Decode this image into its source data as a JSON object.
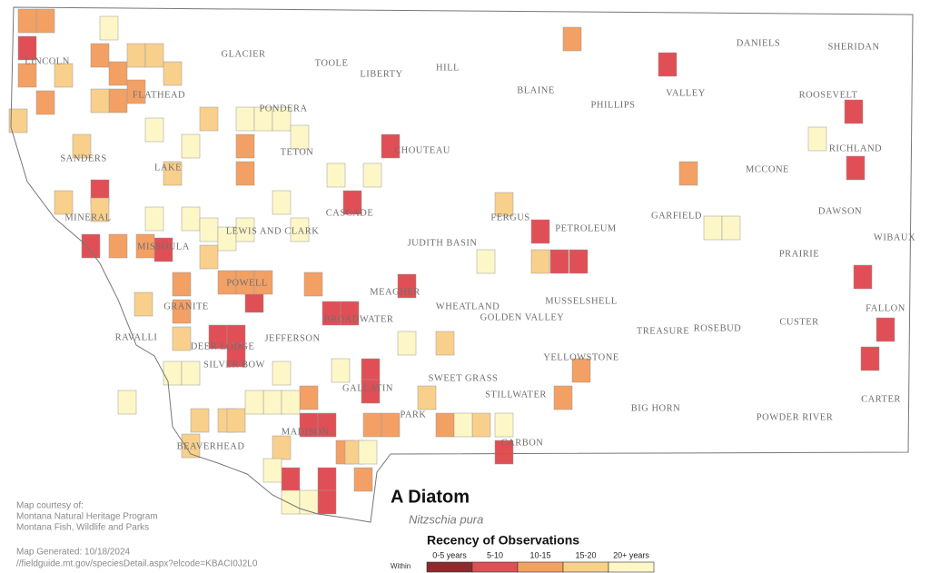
{
  "map": {
    "title": "A Diatom",
    "subtitle": "Nitzschia pura",
    "counties": [
      "LINCOLN",
      "GLACIER",
      "TOOLE",
      "LIBERTY",
      "HILL",
      "BLAINE",
      "PHILLIPS",
      "VALLEY",
      "DANIELS",
      "SHERIDAN",
      "ROOSEVELT",
      "FLATHEAD",
      "PONDERA",
      "TETON",
      "CHOUTEAU",
      "RICHLAND",
      "SANDERS",
      "LAKE",
      "MCCONE",
      "CASCADE",
      "FERGUS",
      "PETROLEUM",
      "GARFIELD",
      "DAWSON",
      "MINERAL",
      "MISSOULA",
      "LEWIS AND CLARK",
      "JUDITH BASIN",
      "PRAIRIE",
      "WIBAUX",
      "POWELL",
      "MEAGHER",
      "WHEATLAND",
      "GOLDEN VALLEY",
      "MUSSELSHELL",
      "GRANITE",
      "BROADWATER",
      "RAVALLI",
      "DEER LODGE",
      "JEFFERSON",
      "TREASURE",
      "ROSEBUD",
      "CUSTER",
      "FALLON",
      "SILVER BOW",
      "YELLOWSTONE",
      "SWEET GRASS",
      "STILLWATER",
      "CARTER",
      "GALLATIN",
      "PARK",
      "BIG HORN",
      "MADISON",
      "CARBON",
      "POWDER RIVER",
      "BEAVERHEAD"
    ],
    "legend": {
      "title": "Recency of Observations",
      "within": "Within",
      "classes": [
        {
          "name": "0-5 years",
          "color": "#8e2a2e"
        },
        {
          "name": "5-10",
          "color": "#e04f55"
        },
        {
          "name": "10-15",
          "color": "#f3a064"
        },
        {
          "name": "15-20",
          "color": "#f8d08c"
        },
        {
          "name": "20+ years",
          "color": "#fdf7c8"
        }
      ]
    },
    "credits": [
      "Map courtesy of:",
      "Montana Natural Heritage Program",
      "Montana Fish, Wildlife and Parks"
    ],
    "generated": "Map Generated: 10/18/2024",
    "url": "//fieldguide.mt.gov/speciesDetail.aspx?elcode=KBACI0J2L0"
  }
}
